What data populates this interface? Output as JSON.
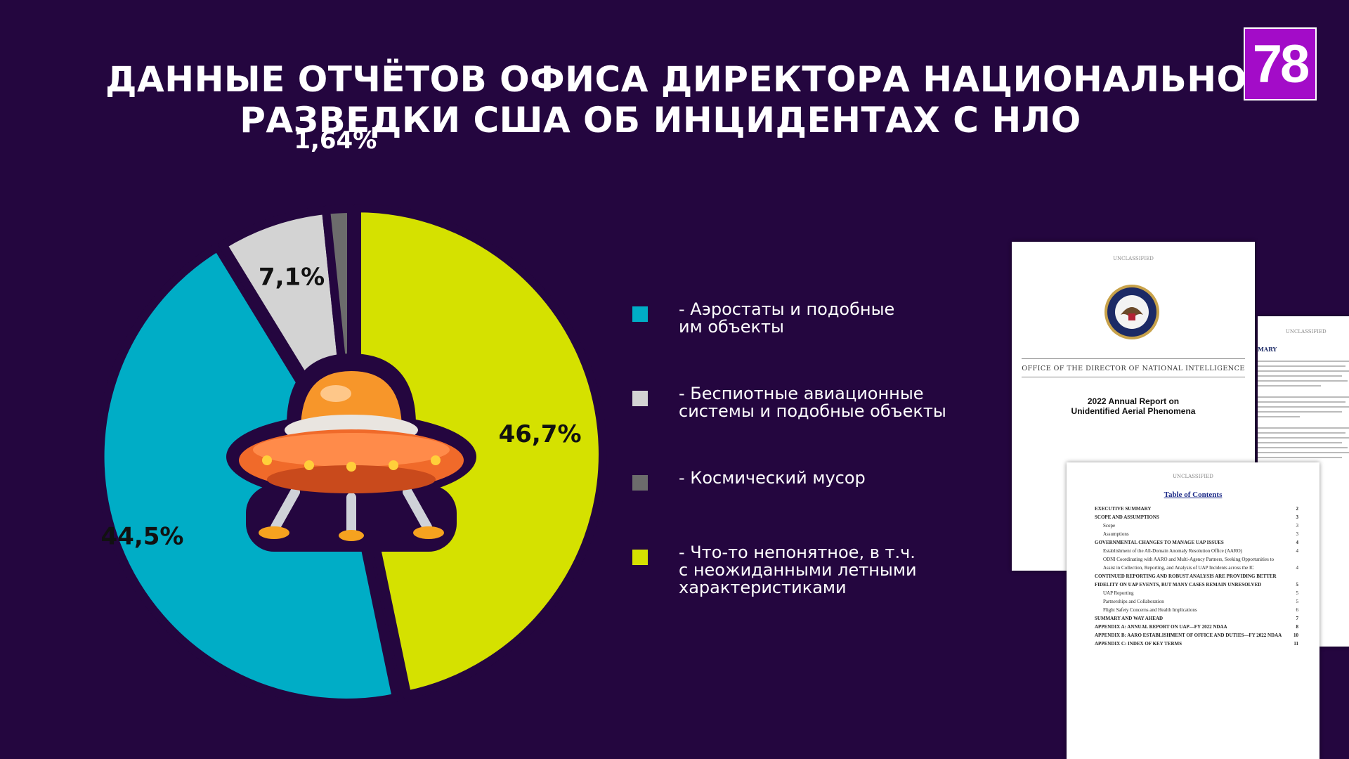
{
  "page": {
    "title_line1": "ДАННЫЕ ОТЧЁТОВ ОФИСА ДИРЕКТОРА НАЦИОНАЛЬНОЙ",
    "title_line2": "РАЗВЕДКИ США ОБ ИНЦИДЕНТАХ С НЛО",
    "logo_text": "78"
  },
  "colors": {
    "background": "#24063f",
    "logo": "#a30cc8",
    "ufo_orange": "#f06a2a"
  },
  "chart_data": {
    "type": "pie",
    "title": "ДАННЫЕ ОТЧЁТОВ ОФИСА ДИРЕКТОРА НАЦИОНАЛЬНОЙ РАЗВЕДКИ США ОБ ИНЦИДЕНТАХ С НЛО",
    "slices": [
      {
        "label": "- Что-то непонятное, в т.ч.\nс неожиданными летными\nхарактеристиками",
        "value": 46.7,
        "display": "46,7%",
        "color": "#d5e100"
      },
      {
        "label": "- Аэростаты и подобные\n   им объекты",
        "value": 44.5,
        "display": "44,5%",
        "color": "#00adc6"
      },
      {
        "label": "- Беспиотные авиационные\n   системы и подобные объекты",
        "value": 7.1,
        "display": "7,1%",
        "color": "#d3d3d3"
      },
      {
        "label": "- Космический мусор",
        "value": 1.64,
        "display": "1,64%",
        "color": "#6c6c6c"
      }
    ],
    "legend_order": [
      1,
      2,
      3,
      0
    ],
    "legend_position": "right",
    "center_icon": "ufo-icon"
  },
  "documents": [
    {
      "header": "UNCLASSIFIED",
      "agency": "OFFICE OF THE DIRECTOR OF NATIONAL INTELLIGENCE",
      "report_title_1": "2022 Annual Report on",
      "report_title_2": "Unidentified Aerial Phenomena",
      "seal_icon": "odni-seal-icon"
    },
    {
      "header": "UNCLASSIFIED",
      "heading": "MARY"
    },
    {
      "header": "UNCLASSIFIED",
      "toc_title": "Table of Contents",
      "toc": [
        {
          "text": "EXECUTIVE SUMMARY",
          "page": "2",
          "bold": true
        },
        {
          "text": "SCOPE AND ASSUMPTIONS",
          "page": "3",
          "bold": true
        },
        {
          "text": "Scope",
          "page": "3",
          "bold": false
        },
        {
          "text": "Assumptions",
          "page": "3",
          "bold": false
        },
        {
          "text": "GOVERNMENTAL CHANGES TO MANAGE UAP ISSUES",
          "page": "4",
          "bold": true
        },
        {
          "text": "Establishment of the All-Domain Anomaly Resolution Office (AARO)",
          "page": "4",
          "bold": false
        },
        {
          "text": "ODNI Coordinating with AARO and Multi-Agency Partners, Seeking Opportunities to",
          "page": "",
          "bold": false
        },
        {
          "text": "Assist in Collection, Reporting, and Analysis of UAP Incidents across the IC",
          "page": "4",
          "bold": false
        },
        {
          "text": "CONTINUED REPORTING AND ROBUST ANALYSIS ARE PROVIDING BETTER",
          "page": "",
          "bold": true
        },
        {
          "text": "FIDELITY ON UAP EVENTS, BUT MANY CASES REMAIN UNRESOLVED",
          "page": "5",
          "bold": true
        },
        {
          "text": "UAP Reporting",
          "page": "5",
          "bold": false
        },
        {
          "text": "Partnerships and Collaboration",
          "page": "5",
          "bold": false
        },
        {
          "text": "Flight Safety Concerns and Health Implications",
          "page": "6",
          "bold": false
        },
        {
          "text": "SUMMARY AND WAY AHEAD",
          "page": "7",
          "bold": true
        },
        {
          "text": "APPENDIX A: ANNUAL REPORT ON UAP—FY 2022 NDAA",
          "page": "8",
          "bold": true
        },
        {
          "text": "APPENDIX B: AARO ESTABLISHMENT OF OFFICE AND DUTIES—FY 2022 NDAA",
          "page": "10",
          "bold": true
        },
        {
          "text": "APPENDIX C: INDEX OF KEY TERMS",
          "page": "11",
          "bold": true
        }
      ]
    }
  ]
}
